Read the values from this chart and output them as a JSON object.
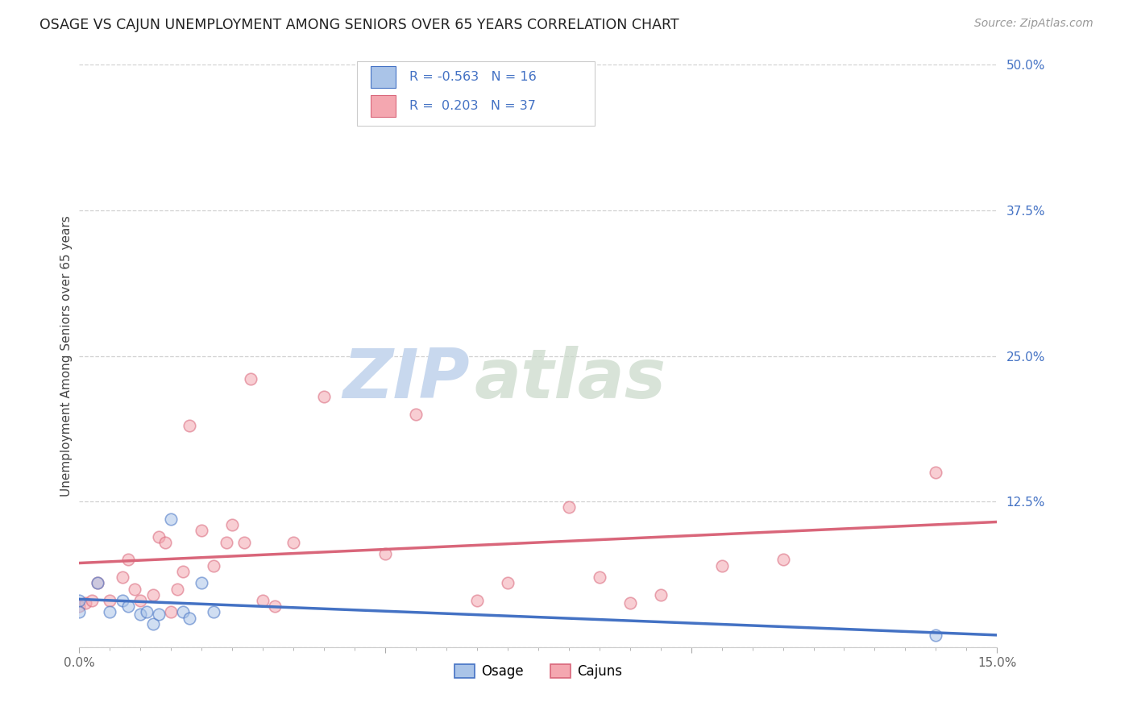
{
  "title": "OSAGE VS CAJUN UNEMPLOYMENT AMONG SENIORS OVER 65 YEARS CORRELATION CHART",
  "source": "Source: ZipAtlas.com",
  "ylabel": "Unemployment Among Seniors over 65 years",
  "xlim": [
    0.0,
    0.15
  ],
  "ylim": [
    0.0,
    0.5
  ],
  "yticks": [
    0.0,
    0.125,
    0.25,
    0.375,
    0.5
  ],
  "yticklabels": [
    "",
    "12.5%",
    "25.0%",
    "37.5%",
    "50.0%"
  ],
  "background_color": "#ffffff",
  "grid_color": "#cccccc",
  "osage_color": "#aac4e8",
  "cajun_color": "#f4a7b0",
  "osage_line_color": "#4472c4",
  "cajun_line_color": "#d9667a",
  "osage_R": -0.563,
  "osage_N": 16,
  "cajun_R": 0.203,
  "cajun_N": 37,
  "legend_color": "#4472c4",
  "osage_points_x": [
    0.0,
    0.0,
    0.003,
    0.005,
    0.007,
    0.008,
    0.01,
    0.011,
    0.012,
    0.013,
    0.015,
    0.017,
    0.018,
    0.02,
    0.022,
    0.14
  ],
  "osage_points_y": [
    0.03,
    0.04,
    0.055,
    0.03,
    0.04,
    0.035,
    0.028,
    0.03,
    0.02,
    0.028,
    0.11,
    0.03,
    0.025,
    0.055,
    0.03,
    0.01
  ],
  "cajun_points_x": [
    0.0,
    0.001,
    0.002,
    0.003,
    0.005,
    0.007,
    0.008,
    0.009,
    0.01,
    0.012,
    0.013,
    0.014,
    0.015,
    0.016,
    0.017,
    0.018,
    0.02,
    0.022,
    0.024,
    0.025,
    0.027,
    0.028,
    0.03,
    0.032,
    0.035,
    0.04,
    0.05,
    0.055,
    0.065,
    0.07,
    0.08,
    0.085,
    0.09,
    0.095,
    0.105,
    0.115,
    0.14
  ],
  "cajun_points_y": [
    0.035,
    0.038,
    0.04,
    0.055,
    0.04,
    0.06,
    0.075,
    0.05,
    0.04,
    0.045,
    0.095,
    0.09,
    0.03,
    0.05,
    0.065,
    0.19,
    0.1,
    0.07,
    0.09,
    0.105,
    0.09,
    0.23,
    0.04,
    0.035,
    0.09,
    0.215,
    0.08,
    0.2,
    0.04,
    0.055,
    0.12,
    0.06,
    0.038,
    0.045,
    0.07,
    0.075,
    0.15
  ],
  "watermark_zip": "ZIP",
  "watermark_atlas": "atlas",
  "watermark_color": "#c8d8ee",
  "marker_size": 110,
  "marker_alpha": 0.55,
  "marker_linewidth": 1.2
}
